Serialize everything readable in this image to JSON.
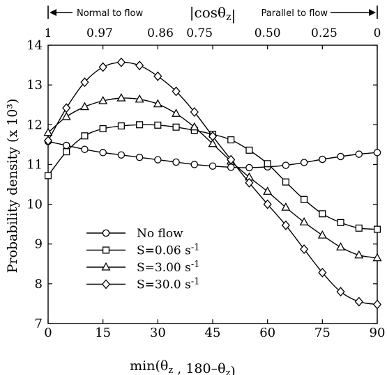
{
  "chart_data": {
    "type": "line",
    "xlabel": "min(θz , 180–θz)",
    "ylabel": "Probability density (x 10³)",
    "xlim": [
      0,
      90
    ],
    "ylim": [
      7,
      14
    ],
    "x_ticks": [
      0,
      15,
      30,
      45,
      60,
      75,
      90
    ],
    "y_ticks": [
      7,
      8,
      9,
      10,
      11,
      12,
      13,
      14
    ],
    "grid": false,
    "legend_position": "bottom-left",
    "top_axis": {
      "label": "|cosθz|",
      "ticks": [
        {
          "label": "1",
          "deg": 0
        },
        {
          "label": "0.97",
          "deg": 14.1
        },
        {
          "label": "0.86",
          "deg": 30.7
        },
        {
          "label": "0.75",
          "deg": 41.4
        },
        {
          "label": "0.50",
          "deg": 60
        },
        {
          "label": "0.25",
          "deg": 75.5
        },
        {
          "label": "0",
          "deg": 90
        }
      ],
      "annotation_left": "Normal to flow",
      "annotation_right": "Parallel to flow"
    },
    "x": [
      0,
      5,
      10,
      15,
      20,
      25,
      30,
      35,
      40,
      45,
      50,
      55,
      60,
      65,
      70,
      75,
      80,
      85,
      90
    ],
    "series": [
      {
        "name": "No flow",
        "marker": "circle",
        "values": [
          11.58,
          11.48,
          11.38,
          11.3,
          11.24,
          11.18,
          11.12,
          11.06,
          11.0,
          10.96,
          10.93,
          10.92,
          10.94,
          10.98,
          11.05,
          11.13,
          11.2,
          11.26,
          11.3
        ]
      },
      {
        "name": "S=0.06 s⁻¹",
        "marker": "square",
        "values": [
          10.72,
          11.32,
          11.72,
          11.9,
          11.97,
          12.0,
          11.99,
          11.94,
          11.86,
          11.76,
          11.62,
          11.36,
          11.02,
          10.56,
          10.12,
          9.76,
          9.54,
          9.4,
          9.37
        ]
      },
      {
        "name": "S=3.00 s⁻¹",
        "marker": "triangle",
        "values": [
          11.8,
          12.2,
          12.45,
          12.6,
          12.67,
          12.64,
          12.52,
          12.28,
          11.94,
          11.52,
          11.08,
          10.68,
          10.32,
          9.92,
          9.55,
          9.22,
          8.92,
          8.72,
          8.65
        ]
      },
      {
        "name": "S=30.0 s⁻¹",
        "marker": "diamond",
        "values": [
          11.6,
          12.42,
          13.07,
          13.45,
          13.57,
          13.49,
          13.22,
          12.84,
          12.32,
          11.71,
          11.12,
          10.54,
          10.0,
          9.47,
          8.87,
          8.28,
          7.8,
          7.55,
          7.48
        ]
      }
    ]
  }
}
